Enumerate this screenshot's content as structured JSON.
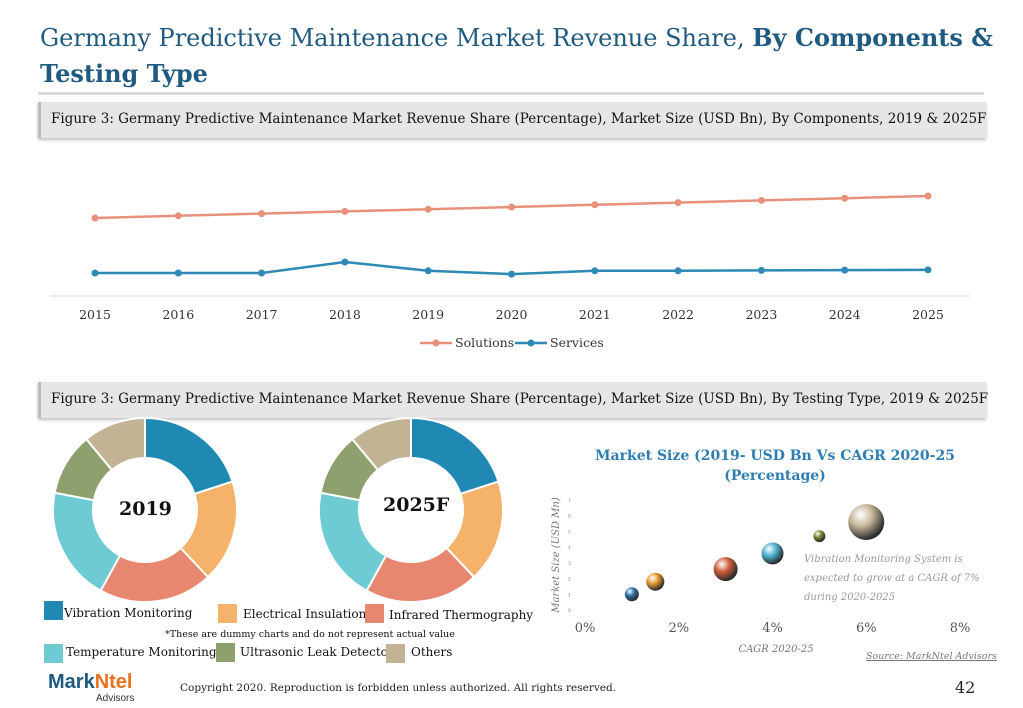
{
  "header": {
    "title_regular": "Germany Predictive Maintenance Market Revenue Share,",
    "title_bold": "By Components & Testing Type"
  },
  "figure1": {
    "caption": "Figure 3: Germany Predictive Maintenance Market Revenue Share (Percentage), Market Size (USD Bn), By Components, 2019 & 2025F"
  },
  "figure2": {
    "caption": "Figure 3: Germany Predictive Maintenance Market Revenue Share (Percentage), Market Size (USD Bn), By Testing Type, 2019 & 2025F"
  },
  "colors": {
    "solutions": "#e8917a",
    "services": "#2e8ab5",
    "vibration": "#2089b3",
    "electrical": "#f5b26b",
    "infrared": "#e8876f",
    "temperature": "#6ecbd3",
    "ultrasonic": "#8fa06f",
    "others": "#c2b394"
  },
  "chart_data": [
    {
      "type": "line",
      "x": [
        "2015",
        "2016",
        "2017",
        "2018",
        "2019",
        "2020",
        "2021",
        "2022",
        "2023",
        "2024",
        "2025"
      ],
      "ylim": [
        0,
        100
      ],
      "grid": false,
      "legend": "bottom",
      "series": [
        {
          "name": "Solutions",
          "values": [
            60,
            61,
            62,
            63,
            64,
            65,
            66,
            67,
            68,
            69,
            70
          ]
        },
        {
          "name": "Services",
          "values": [
            35,
            35,
            35,
            40,
            36,
            34.5,
            36,
            36,
            36.2,
            36.3,
            36.4
          ]
        }
      ]
    },
    {
      "type": "pie",
      "donut": true,
      "center_label": "2019",
      "categories": [
        "Vibration Monitoring",
        "Electrical Insulation",
        "Infrared Thermography",
        "Temperature Monitoring",
        "Ultrasonic Leak Detector",
        "Others"
      ],
      "values": [
        20,
        18,
        20,
        20,
        11,
        11
      ]
    },
    {
      "type": "pie",
      "donut": true,
      "center_label": "2025F",
      "categories": [
        "Vibration Monitoring",
        "Electrical Insulation",
        "Infrared Thermography",
        "Temperature Monitoring",
        "Ultrasonic Leak Detector",
        "Others"
      ],
      "values": [
        20,
        18,
        20,
        20,
        11,
        11
      ]
    },
    {
      "type": "scatter",
      "title": "Market Size (2019- USD Bn Vs CAGR 2020-25 (Percentage)",
      "xlabel": "CAGR 2020-25",
      "ylabel": "Market Size (USD Mn)",
      "xlim": [
        0,
        8
      ],
      "ylim": [
        0,
        7
      ],
      "x_ticks": [
        "0%",
        "2%",
        "4%",
        "6%",
        "8%"
      ],
      "y_ticks": [
        "0",
        "1",
        "2",
        "3",
        "4",
        "5",
        "6",
        "7"
      ],
      "points": [
        {
          "x": 1.0,
          "y": 1.0,
          "size": 7,
          "color": "#2e6fa8"
        },
        {
          "x": 1.5,
          "y": 1.8,
          "size": 9,
          "color": "#e39a30"
        },
        {
          "x": 3.0,
          "y": 2.6,
          "size": 12,
          "color": "#cf5b3a"
        },
        {
          "x": 4.0,
          "y": 3.6,
          "size": 11,
          "color": "#4fb4d2"
        },
        {
          "x": 5.0,
          "y": 4.7,
          "size": 6,
          "color": "#7a8a3a"
        },
        {
          "x": 6.0,
          "y": 5.6,
          "size": 18,
          "color": "#c8b89a"
        }
      ],
      "annotation": [
        "Vibration Monitoring System is",
        "expected to grow at a CAGR of 7%",
        "during 2020-2025"
      ]
    }
  ],
  "legend": {
    "items": [
      "Vibration Monitoring",
      "Electrical Insulation",
      "Infrared Thermography",
      "Temperature Monitoring",
      "Ultrasonic Leak Detector",
      "Others"
    ]
  },
  "footer": {
    "disclaimer": "*These are dummy charts and do not represent actual value",
    "source": "Source: MarkNtel Advisors",
    "copyright": "Copyright 2020. Reproduction is forbidden unless authorized. All rights reserved.",
    "page_number": "42",
    "logo_part1": "Mark",
    "logo_part2": "Ntel",
    "logo_sub": "Advisors"
  }
}
